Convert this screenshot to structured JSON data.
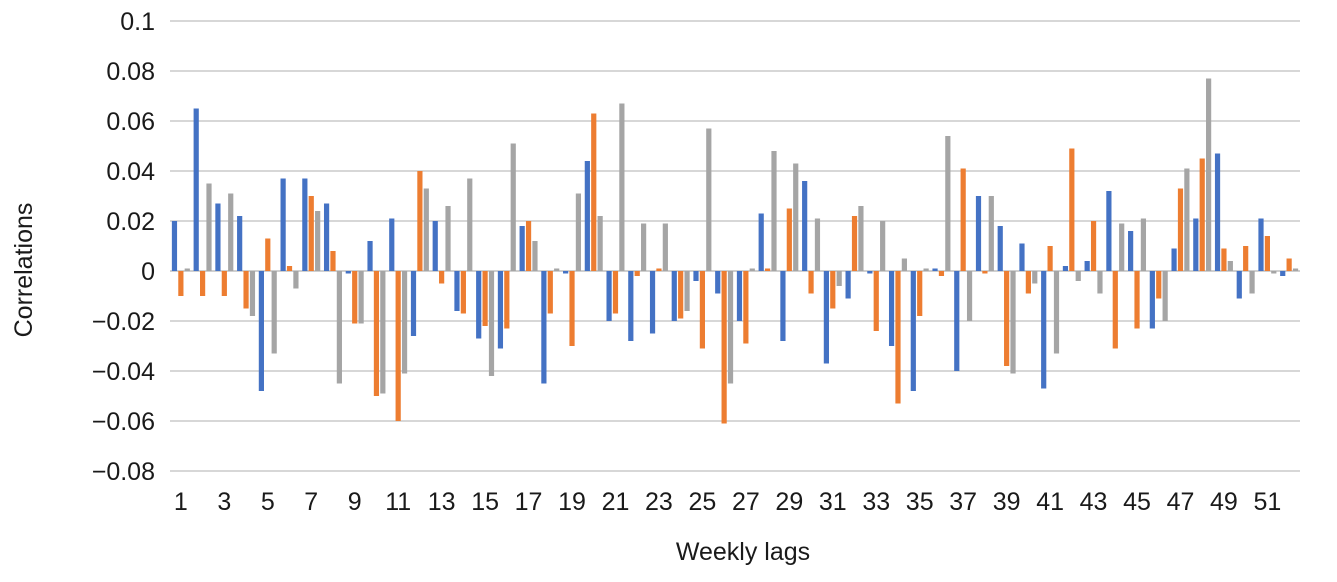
{
  "colors": {
    "series1": "#4472c4",
    "series2": "#ed7d31",
    "series3": "#a5a5a5",
    "grid": "#bfbfbf"
  },
  "chart_data": {
    "type": "bar",
    "title": "",
    "xlabel": "Weekly lags",
    "ylabel": "Correlations",
    "ylim": [
      -0.08,
      0.1
    ],
    "yticks": [
      0.1,
      0.08,
      0.06,
      0.04,
      0.02,
      0,
      -0.02,
      -0.04,
      -0.06,
      -0.08
    ],
    "ytick_labels": [
      "0.1",
      "0.08",
      "0.06",
      "0.04",
      "0.02",
      "0",
      "−0.02",
      "−0.04",
      "−0.06",
      "−0.08"
    ],
    "grid": "horizontal",
    "legend": "none",
    "categories": [
      1,
      2,
      3,
      4,
      5,
      6,
      7,
      8,
      9,
      10,
      11,
      12,
      13,
      14,
      15,
      16,
      17,
      18,
      19,
      20,
      21,
      22,
      23,
      24,
      25,
      26,
      27,
      28,
      29,
      30,
      31,
      32,
      33,
      34,
      35,
      36,
      37,
      38,
      39,
      40,
      41,
      42,
      43,
      44,
      45,
      46,
      47,
      48,
      49,
      50,
      51,
      52
    ],
    "xtick_labels": [
      "1",
      "",
      "3",
      "",
      "5",
      "",
      "7",
      "",
      "9",
      "",
      "11",
      "",
      "13",
      "",
      "15",
      "",
      "17",
      "",
      "19",
      "",
      "21",
      "",
      "23",
      "",
      "25",
      "",
      "27",
      "",
      "29",
      "",
      "31",
      "",
      "33",
      "",
      "35",
      "",
      "37",
      "",
      "39",
      "",
      "41",
      "",
      "43",
      "",
      "45",
      "",
      "47",
      "",
      "49",
      "",
      "51",
      ""
    ],
    "series": [
      {
        "values": [
          0.02,
          0.065,
          0.027,
          0.022,
          -0.048,
          0.037,
          0.037,
          0.027,
          -0.001,
          0.012,
          0.021,
          -0.026,
          0.02,
          -0.016,
          -0.027,
          -0.031,
          0.018,
          -0.045,
          -0.001,
          0.044,
          -0.02,
          -0.028,
          -0.025,
          -0.02,
          -0.004,
          -0.009,
          -0.02,
          0.023,
          -0.028,
          0.036,
          -0.037,
          -0.011,
          -0.001,
          -0.03,
          -0.048,
          0.001,
          -0.04,
          0.03,
          0.018,
          0.011,
          -0.047,
          0.002,
          0.004,
          0.032,
          0.016,
          -0.023,
          0.009,
          0.021,
          0.047,
          -0.011,
          0.021,
          -0.002
        ]
      },
      {
        "values": [
          -0.01,
          -0.01,
          -0.01,
          -0.015,
          0.013,
          0.002,
          0.03,
          0.008,
          -0.021,
          -0.05,
          -0.06,
          0.04,
          -0.005,
          -0.017,
          -0.022,
          -0.023,
          0.02,
          -0.017,
          -0.03,
          0.063,
          -0.017,
          -0.002,
          0.001,
          -0.019,
          -0.031,
          -0.061,
          -0.029,
          0.001,
          0.025,
          -0.009,
          -0.015,
          0.022,
          -0.024,
          -0.053,
          -0.018,
          -0.002,
          0.041,
          -0.001,
          -0.038,
          -0.009,
          0.01,
          0.049,
          0.02,
          -0.031,
          -0.023,
          -0.011,
          0.033,
          0.045,
          0.009,
          0.01,
          0.014,
          0.005
        ]
      },
      {
        "values": [
          0.001,
          0.035,
          0.031,
          -0.018,
          -0.033,
          -0.007,
          0.024,
          -0.045,
          -0.021,
          -0.049,
          -0.041,
          0.033,
          0.026,
          0.037,
          -0.042,
          0.051,
          0.012,
          0.001,
          0.031,
          0.022,
          0.067,
          0.019,
          0.019,
          -0.016,
          0.057,
          -0.045,
          0.001,
          0.048,
          0.043,
          0.021,
          -0.006,
          0.026,
          0.02,
          0.005,
          0.001,
          0.054,
          -0.02,
          0.03,
          -0.041,
          -0.005,
          -0.033,
          -0.004,
          -0.009,
          0.019,
          0.021,
          -0.02,
          0.041,
          0.077,
          0.004,
          -0.009,
          -0.001,
          0.001
        ]
      }
    ]
  }
}
